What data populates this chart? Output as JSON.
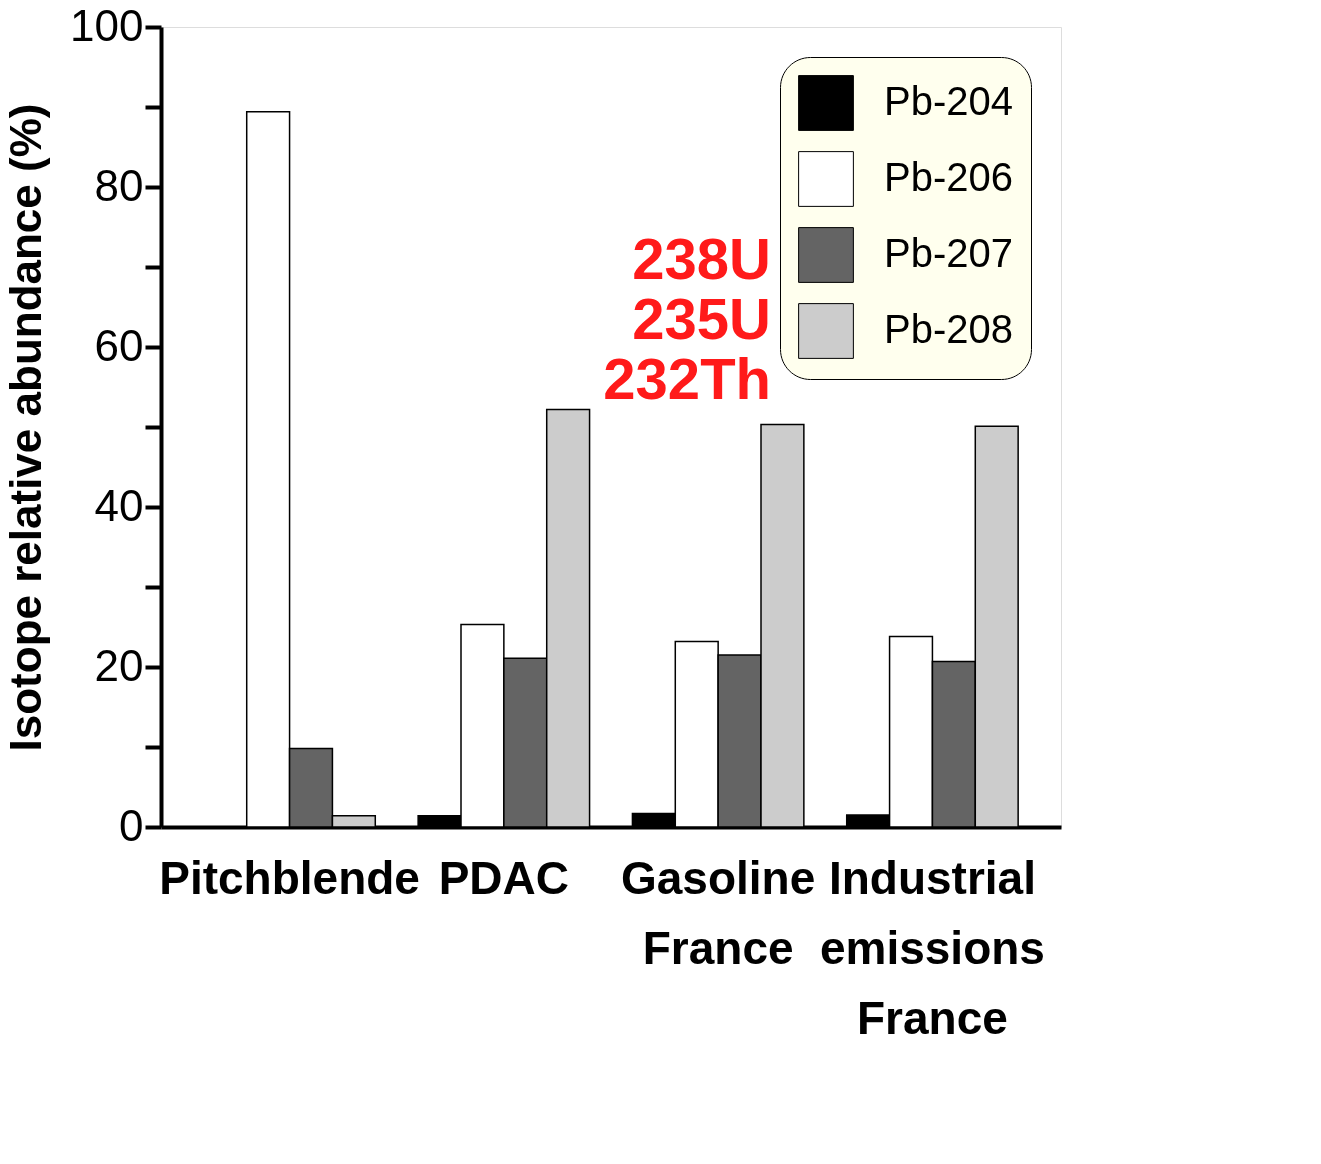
{
  "chart_data": {
    "type": "bar",
    "ylabel": "Isotope relative abundance (%)",
    "categories": [
      "Pitchblende",
      "PDAC",
      "Gasoline France",
      "Industrial emissions France"
    ],
    "series": [
      {
        "name": "Pb-204",
        "color": "#000000",
        "values": [
          null,
          1.4,
          1.7,
          1.5
        ]
      },
      {
        "name": "Pb-206",
        "color": "#ffffff",
        "values": [
          89.4,
          25.3,
          23.2,
          23.8
        ]
      },
      {
        "name": "Pb-207",
        "color": "#646464",
        "values": [
          9.8,
          21.1,
          21.5,
          20.7
        ]
      },
      {
        "name": "Pb-208",
        "color": "#cccccc",
        "values": [
          1.4,
          52.2,
          50.3,
          50.1
        ]
      }
    ],
    "ylim": [
      0,
      100
    ],
    "yticks": [
      0,
      {
        "value": 10,
        "label": null
      },
      20,
      {
        "value": 30,
        "label": null
      },
      40,
      {
        "value": 50,
        "label": null
      },
      60,
      {
        "value": 70,
        "label": null
      },
      80,
      {
        "value": 90,
        "label": null
      },
      100
    ],
    "grid": false,
    "legend": "top right",
    "annotations": [
      "238U",
      "235U",
      "232Th"
    ]
  }
}
